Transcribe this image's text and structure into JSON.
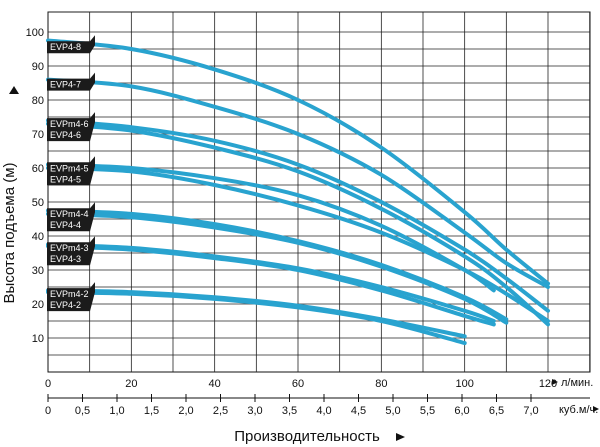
{
  "chart_data": {
    "type": "line",
    "ylabel": "Высота подъема (м)",
    "xlabel": "Производительность",
    "x_primary_unit": "л/мин.",
    "x_secondary_unit": "куб.м/ч.",
    "xlim": [
      0,
      120
    ],
    "ylim": [
      0,
      100
    ],
    "y_ticks": [
      10,
      20,
      30,
      40,
      50,
      60,
      70,
      80,
      90,
      100
    ],
    "x_ticks_primary": [
      0,
      20,
      40,
      60,
      80,
      100,
      120
    ],
    "x_ticks_secondary": [
      "0",
      "0,5",
      "1,0",
      "1,5",
      "2,0",
      "2,5",
      "3,0",
      "3,5",
      "4,0",
      "4,5",
      "5,0",
      "5,5",
      "6,0",
      "6,5",
      "7,0"
    ],
    "grid": true,
    "line_color": "#29a3cf",
    "tag_color": "#1b1b1b",
    "series": [
      {
        "name": "EVP4-8",
        "x": [
          0,
          20,
          40,
          60,
          80,
          100,
          110,
          120
        ],
        "y": [
          97.5,
          95,
          89,
          80,
          66,
          47,
          36,
          26
        ]
      },
      {
        "name": "EVP4-7",
        "x": [
          0,
          20,
          40,
          60,
          80,
          100,
          110,
          120
        ],
        "y": [
          86,
          84,
          78,
          70,
          58,
          41,
          32,
          25
        ]
      },
      {
        "name": "EVPm4-6",
        "x": [
          0,
          20,
          40,
          60,
          80,
          100,
          110,
          120
        ],
        "y": [
          74,
          72,
          68,
          61,
          50,
          36,
          27.5,
          18
        ]
      },
      {
        "name": "EVP4-6",
        "x": [
          0,
          20,
          40,
          60,
          80,
          100,
          110,
          120
        ],
        "y": [
          73,
          71,
          66,
          59,
          48,
          34,
          25,
          14
        ]
      },
      {
        "name": "EVPm4-5",
        "x": [
          0,
          20,
          40,
          60,
          80,
          100,
          107
        ],
        "y": [
          61,
          60,
          57,
          52,
          43,
          30,
          24
        ]
      },
      {
        "name": "EVP4-5",
        "x": [
          0,
          20,
          40,
          60,
          80,
          100,
          110,
          120
        ],
        "y": [
          60,
          59,
          55,
          49,
          41,
          30,
          23,
          15
        ]
      },
      {
        "name": "EVPm4-4",
        "x": [
          0,
          20,
          40,
          60,
          80,
          100,
          110
        ],
        "y": [
          47.5,
          46.5,
          43.5,
          38.5,
          31.5,
          22,
          15.5
        ]
      },
      {
        "name": "EVP4-4",
        "x": [
          0,
          20,
          40,
          60,
          80,
          100,
          110
        ],
        "y": [
          46.5,
          45.5,
          42.5,
          38,
          31,
          21.5,
          14.5
        ]
      },
      {
        "name": "EVPm4-3",
        "x": [
          0,
          20,
          40,
          60,
          80,
          100,
          107
        ],
        "y": [
          37.5,
          36.5,
          34,
          30.5,
          25,
          18,
          15
        ]
      },
      {
        "name": "EVP4-3",
        "x": [
          0,
          20,
          40,
          60,
          80,
          100,
          107
        ],
        "y": [
          37,
          36,
          33.5,
          30,
          24,
          16.5,
          14
        ]
      },
      {
        "name": "EVPm4-2",
        "x": [
          0,
          20,
          40,
          60,
          80,
          100
        ],
        "y": [
          24,
          23.5,
          22,
          19.5,
          15.5,
          10.5
        ]
      },
      {
        "name": "EVP4-2",
        "x": [
          0,
          20,
          40,
          60,
          80,
          100
        ],
        "y": [
          23.5,
          23,
          21.5,
          19,
          15,
          8.5
        ]
      }
    ],
    "tags": [
      {
        "lines": [
          "EVP4-8"
        ],
        "y": 97
      },
      {
        "lines": [
          "EVP4-7"
        ],
        "y": 86
      },
      {
        "lines": [
          "EVPm4-6",
          "EVP4-6"
        ],
        "y": 73.5
      },
      {
        "lines": [
          "EVPm4-5",
          "EVP4-5"
        ],
        "y": 60.5
      },
      {
        "lines": [
          "EVPm4-4",
          "EVP4-4"
        ],
        "y": 47
      },
      {
        "lines": [
          "EVPm4-3",
          "EVP4-3"
        ],
        "y": 37
      },
      {
        "lines": [
          "EVPm4-2",
          "EVP4-2"
        ],
        "y": 23.5
      }
    ]
  }
}
